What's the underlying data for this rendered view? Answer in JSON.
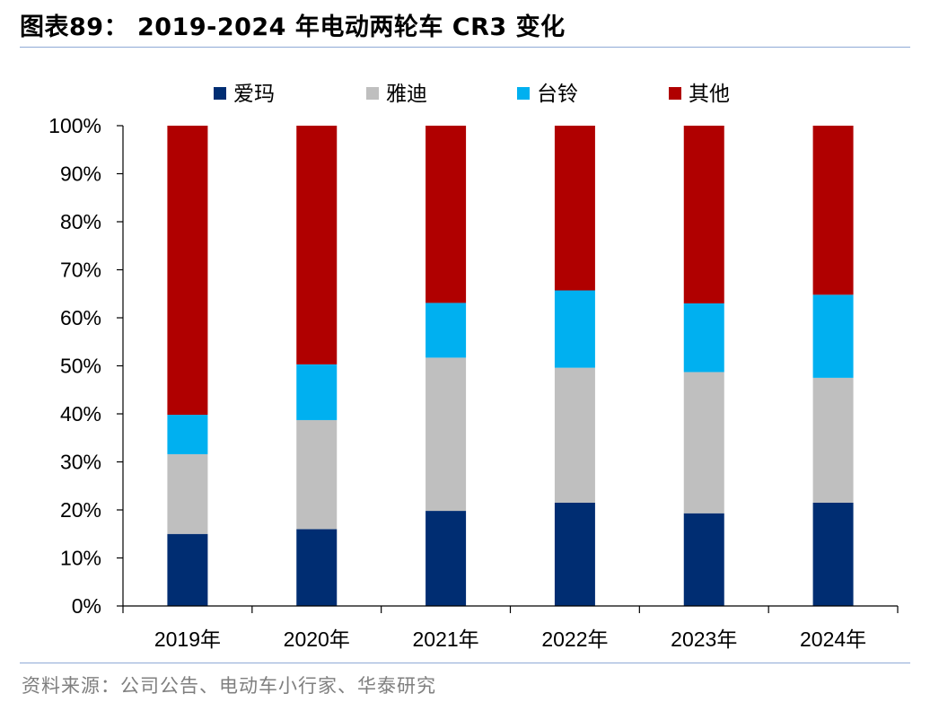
{
  "header": {
    "title": "图表89： 2019-2024 年电动两轮车 CR3 变化"
  },
  "footer": {
    "source": "资料来源：公司公告、电动车小行家、华泰研究"
  },
  "colors": {
    "爱玛": "#002d72",
    "雅迪": "#bfbfbf",
    "台铃": "#00b0f0",
    "其他": "#b00000",
    "rule": "#8faad6"
  },
  "chart_data": {
    "type": "bar",
    "stacked": true,
    "categories": [
      "2019年",
      "2020年",
      "2021年",
      "2022年",
      "2023年",
      "2024年"
    ],
    "series": [
      {
        "name": "爱玛",
        "values": [
          15,
          16,
          19.8,
          21.5,
          19.3,
          21.5
        ]
      },
      {
        "name": "雅迪",
        "values": [
          16.6,
          22.7,
          31.9,
          28.1,
          29.4,
          26
        ]
      },
      {
        "name": "台铃",
        "values": [
          8.2,
          11.6,
          11.4,
          16.1,
          14.3,
          17.3
        ]
      },
      {
        "name": "其他",
        "values": [
          60.2,
          49.7,
          36.9,
          34.3,
          37,
          35.2
        ]
      }
    ],
    "ylim": [
      0,
      100
    ],
    "yticks": [
      "0%",
      "10%",
      "20%",
      "30%",
      "40%",
      "50%",
      "60%",
      "70%",
      "80%",
      "90%",
      "100%"
    ],
    "grid": false,
    "legend": "top"
  }
}
